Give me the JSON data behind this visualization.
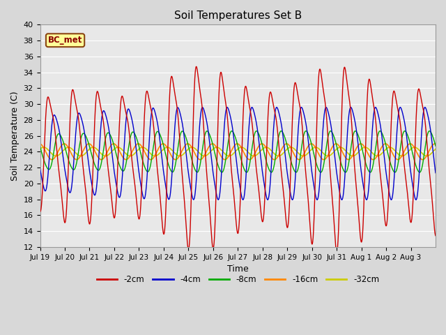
{
  "title": "Soil Temperatures Set B",
  "xlabel": "Time",
  "ylabel": "Soil Temperature (C)",
  "ylim": [
    12,
    40
  ],
  "yticks": [
    12,
    14,
    16,
    18,
    20,
    22,
    24,
    26,
    28,
    30,
    32,
    34,
    36,
    38,
    40
  ],
  "xtick_labels": [
    "Jul 19",
    "Jul 20",
    "Jul 21",
    "Jul 22",
    "Jul 23",
    "Jul 24",
    "Jul 25",
    "Jul 26",
    "Jul 27",
    "Jul 28",
    "Jul 29",
    "Jul 30",
    "Jul 31",
    "Aug 1",
    "Aug 2",
    "Aug 3"
  ],
  "colors": {
    "-2cm": "#cc0000",
    "-4cm": "#0000cc",
    "-8cm": "#00aa00",
    "-16cm": "#ff8800",
    "-32cm": "#cccc00"
  },
  "legend_label": "BC_met",
  "legend_bg": "#ffff99",
  "legend_border": "#8B4513",
  "bg_color": "#d8d8d8",
  "plot_bg": "#e8e8e8",
  "grid_color": "#ffffff",
  "total_days": 16
}
